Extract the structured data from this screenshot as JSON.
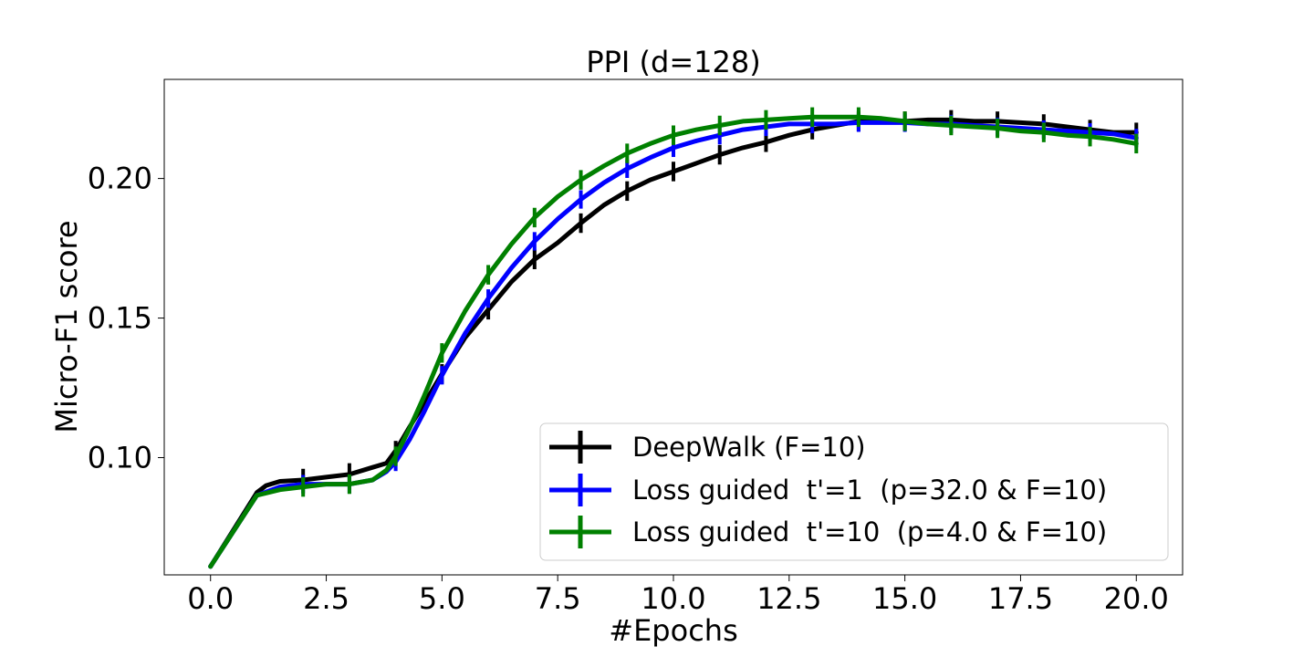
{
  "chart_data": {
    "type": "line",
    "title": "PPI (d=128)",
    "xlabel": "#Epochs",
    "ylabel": "Micro-F1 score",
    "xlim": [
      -1.0,
      21.0
    ],
    "ylim": [
      0.058,
      0.2355
    ],
    "xticks": [
      0.0,
      2.5,
      5.0,
      7.5,
      10.0,
      12.5,
      15.0,
      17.5,
      20.0
    ],
    "xtick_labels": [
      "0.0",
      "2.5",
      "5.0",
      "7.5",
      "10.0",
      "12.5",
      "15.0",
      "17.5",
      "20.0"
    ],
    "yticks": [
      0.1,
      0.15,
      0.2
    ],
    "ytick_labels": [
      "0.10",
      "0.15",
      "0.20"
    ],
    "grid": false,
    "legend_position": "lower-right",
    "series": [
      {
        "name": "DeepWalk (F=10)",
        "color": "#000000",
        "x": [
          0.0,
          1.0,
          1.2,
          1.5,
          2.0,
          2.5,
          3.0,
          3.5,
          3.8,
          4.0,
          4.3,
          4.6,
          5.0,
          5.5,
          6.0,
          6.5,
          7.0,
          7.5,
          8.0,
          8.5,
          9.0,
          9.5,
          10.0,
          10.5,
          11.0,
          11.5,
          12.0,
          12.5,
          13.0,
          13.5,
          14.0,
          14.5,
          15.0,
          15.5,
          16.0,
          16.5,
          17.0,
          17.5,
          18.0,
          18.5,
          19.0,
          19.5,
          20.0
        ],
        "y": [
          0.061,
          0.0875,
          0.09,
          0.0915,
          0.092,
          0.093,
          0.094,
          0.0965,
          0.098,
          0.1025,
          0.111,
          0.119,
          0.13,
          0.143,
          0.153,
          0.163,
          0.171,
          0.177,
          0.184,
          0.1905,
          0.1955,
          0.1995,
          0.2025,
          0.2055,
          0.2085,
          0.211,
          0.213,
          0.2155,
          0.2175,
          0.219,
          0.2205,
          0.2205,
          0.2205,
          0.221,
          0.221,
          0.2205,
          0.2205,
          0.22,
          0.2195,
          0.2185,
          0.2175,
          0.2165,
          0.2165
        ],
        "err_x": [
          2.0,
          3.0,
          4.0,
          5.0,
          6.0,
          7.0,
          8.0,
          9.0,
          10.0,
          11.0,
          12.0,
          13.0,
          14.0,
          15.0,
          16.0,
          17.0,
          18.0,
          19.0,
          20.0
        ],
        "err_y": [
          0.0925,
          0.0945,
          0.1025,
          0.13,
          0.153,
          0.171,
          0.184,
          0.1955,
          0.2025,
          0.2085,
          0.213,
          0.2175,
          0.2205,
          0.2205,
          0.221,
          0.2205,
          0.2195,
          0.2175,
          0.2165
        ],
        "err": 0.0035
      },
      {
        "name": "Loss guided  t'=1  (p=32.0 & F=10)",
        "color": "#0000ff",
        "x": [
          0.0,
          1.0,
          1.5,
          2.0,
          2.5,
          3.0,
          3.5,
          3.8,
          4.0,
          4.3,
          4.6,
          5.0,
          5.5,
          6.0,
          6.5,
          7.0,
          7.5,
          8.0,
          8.5,
          9.0,
          9.5,
          10.0,
          10.5,
          11.0,
          11.5,
          12.0,
          12.5,
          13.0,
          13.5,
          14.0,
          14.5,
          15.0,
          15.5,
          16.0,
          16.5,
          17.0,
          17.5,
          18.0,
          18.5,
          19.0,
          19.5,
          20.0
        ],
        "y": [
          0.061,
          0.0865,
          0.0895,
          0.0905,
          0.0905,
          0.0905,
          0.092,
          0.095,
          0.0985,
          0.1065,
          0.116,
          0.1295,
          0.1445,
          0.157,
          0.168,
          0.1775,
          0.1855,
          0.1925,
          0.1985,
          0.2035,
          0.2075,
          0.211,
          0.2135,
          0.2155,
          0.2175,
          0.2185,
          0.2195,
          0.2195,
          0.2195,
          0.22,
          0.22,
          0.22,
          0.2195,
          0.2195,
          0.219,
          0.2185,
          0.218,
          0.2175,
          0.217,
          0.2165,
          0.216,
          0.2145
        ],
        "err_x": [
          2.0,
          3.0,
          4.0,
          5.0,
          6.0,
          7.0,
          8.0,
          9.0,
          10.0,
          11.0,
          12.0,
          13.0,
          14.0,
          15.0,
          16.0,
          17.0,
          18.0,
          19.0,
          20.0
        ],
        "err_y": [
          0.0905,
          0.0905,
          0.0985,
          0.1295,
          0.157,
          0.1775,
          0.1925,
          0.2035,
          0.211,
          0.2155,
          0.2185,
          0.2195,
          0.22,
          0.22,
          0.2195,
          0.2185,
          0.2175,
          0.2165,
          0.2145
        ],
        "err": 0.0033
      },
      {
        "name": "Loss guided  t'=10  (p=4.0 & F=10)",
        "color": "#008000",
        "x": [
          0.0,
          1.0,
          1.5,
          2.0,
          2.5,
          3.0,
          3.5,
          3.8,
          4.0,
          4.3,
          4.6,
          5.0,
          5.5,
          6.0,
          6.5,
          7.0,
          7.5,
          8.0,
          8.5,
          9.0,
          9.5,
          10.0,
          10.5,
          11.0,
          11.5,
          12.0,
          12.5,
          13.0,
          13.5,
          14.0,
          14.5,
          15.0,
          15.5,
          16.0,
          16.5,
          17.0,
          17.5,
          18.0,
          18.5,
          19.0,
          19.5,
          20.0
        ],
        "y": [
          0.061,
          0.0865,
          0.0885,
          0.0895,
          0.0905,
          0.0905,
          0.092,
          0.0955,
          0.1005,
          0.1105,
          0.1215,
          0.1375,
          0.1525,
          0.1655,
          0.1765,
          0.186,
          0.1935,
          0.1995,
          0.2045,
          0.209,
          0.2125,
          0.2155,
          0.2175,
          0.219,
          0.2205,
          0.221,
          0.2215,
          0.222,
          0.222,
          0.222,
          0.2215,
          0.2205,
          0.2195,
          0.219,
          0.2185,
          0.218,
          0.217,
          0.2165,
          0.2155,
          0.215,
          0.214,
          0.2125
        ],
        "err_x": [
          2.0,
          3.0,
          4.0,
          5.0,
          6.0,
          7.0,
          8.0,
          9.0,
          10.0,
          11.0,
          12.0,
          13.0,
          14.0,
          15.0,
          16.0,
          17.0,
          18.0,
          19.0,
          20.0
        ],
        "err_y": [
          0.0895,
          0.0905,
          0.1005,
          0.1375,
          0.1655,
          0.186,
          0.1995,
          0.209,
          0.2155,
          0.219,
          0.221,
          0.222,
          0.222,
          0.2205,
          0.219,
          0.218,
          0.2165,
          0.215,
          0.2125
        ],
        "err": 0.0035
      }
    ]
  }
}
